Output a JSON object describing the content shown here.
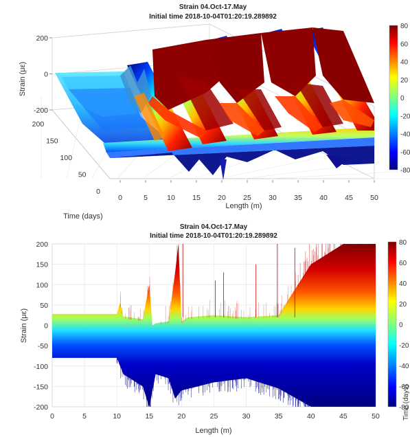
{
  "chart_data": [
    {
      "type": "surface",
      "title": "Strain 04.Oct-17.May",
      "subtitle": "Initial time 2018-10-04T01:20:19.289892",
      "xlabel": "Length (m)",
      "ylabel": "Time (days)",
      "zlabel": "Strain (με)",
      "xticks": [
        "0",
        "5",
        "10",
        "15",
        "20",
        "25",
        "30",
        "35",
        "40",
        "45",
        "50"
      ],
      "yticks": [
        "0",
        "50",
        "100",
        "150",
        "200"
      ],
      "zticks": [
        "200",
        "0",
        "-200"
      ],
      "colorbar_ticks": [
        "80",
        "60",
        "40",
        "20",
        "0",
        "-20",
        "-40",
        "-60",
        "-80"
      ],
      "xlim": [
        0,
        50
      ],
      "ylim": [
        0,
        220
      ],
      "zlim": [
        -200,
        200
      ],
      "clim": [
        -80,
        80
      ],
      "colormap": "jet",
      "grid": true
    },
    {
      "type": "area",
      "title": "Strain 04.Oct-17.May",
      "subtitle": "Initial time 2018-10-04T01:20:19.289892",
      "xlabel": "Length (m)",
      "ylabel": "Strain (με)",
      "xticks": [
        "0",
        "5",
        "10",
        "15",
        "20",
        "25",
        "30",
        "35",
        "40",
        "45",
        "50"
      ],
      "yticks": [
        "200",
        "150",
        "100",
        "50",
        "0",
        "-50",
        "-100",
        "-150",
        "-200"
      ],
      "colorbar_ticks": [
        "80",
        "60",
        "40",
        "20",
        "0",
        "-20",
        "-40",
        "-60",
        "-80"
      ],
      "colorbar_label": "Time (days)",
      "xlim": [
        0,
        50
      ],
      "ylim": [
        -200,
        200
      ],
      "clim": [
        -80,
        80
      ],
      "colormap": "jet",
      "grid": true,
      "upper_envelope": {
        "x": [
          0,
          10,
          10.5,
          11,
          14,
          15,
          15.5,
          16,
          18,
          19,
          19.5,
          20,
          21,
          25,
          30,
          35,
          40,
          45,
          50
        ],
        "y": [
          28,
          28,
          55,
          22,
          15,
          100,
          0,
          5,
          10,
          130,
          200,
          10,
          20,
          25,
          20,
          25,
          150,
          200,
          200
        ]
      },
      "lower_envelope": {
        "x": [
          0,
          10,
          11,
          14,
          15,
          16,
          18,
          19,
          20,
          25,
          30,
          35,
          40,
          45,
          50
        ],
        "y": [
          -80,
          -80,
          -120,
          -150,
          -200,
          -120,
          -130,
          -180,
          -160,
          -140,
          -130,
          -155,
          -200,
          -200,
          -200
        ]
      }
    }
  ]
}
